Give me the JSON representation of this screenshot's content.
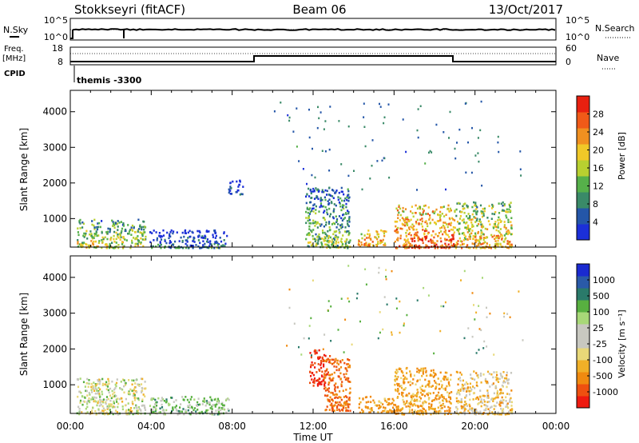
{
  "header": {
    "station": "Stokkseyri (fitACF)",
    "beam": "Beam 06",
    "date": "13/Oct/2017"
  },
  "labels": {
    "nsky": "N.Sky",
    "nsearch": "N.Search",
    "freq_top": "Freq.",
    "freq_unit": "[MHz]",
    "cpid": "CPID",
    "nave": "Nave",
    "cpid_value": "themis -3300",
    "time_axis": "Time UT"
  },
  "noise_panel": {
    "left_ticks": [
      "10^5",
      "10^0"
    ],
    "right_ticks": [
      "10^5",
      "10^0"
    ]
  },
  "freq_panel": {
    "left_ticks": [
      "18",
      "8"
    ],
    "right_ticks": [
      "60",
      "0"
    ]
  },
  "colors": {
    "power": [
      "#1b2fd8",
      "#2456a8",
      "#3a8a68",
      "#56b04a",
      "#b8d030",
      "#f0c828",
      "#f09020",
      "#f05a18",
      "#e82010"
    ],
    "velocity": [
      "#ee1a10",
      "#ee5010",
      "#f08a10",
      "#f0b028",
      "#e8d878",
      "#c8c8c0",
      "#c8c8c0",
      "#a8d878",
      "#58b040",
      "#2a7a6a",
      "#2a5aa8",
      "#1a2ad0"
    ]
  },
  "chart_data": [
    {
      "type": "heatmap",
      "panel": "power",
      "xlabel": "",
      "ylabel": "Slant Range [km]",
      "xlim": [
        0,
        24
      ],
      "ylim": [
        200,
        4600
      ],
      "x_ticks": [
        "00:00",
        "04:00",
        "08:00",
        "12:00",
        "16:00",
        "20:00",
        "00:00"
      ],
      "y_ticks": [
        1000,
        2000,
        3000,
        4000
      ],
      "colorbar": {
        "label": "Power [dB]",
        "tick_labels": [
          "4",
          "8",
          "12",
          "16",
          "20",
          "24",
          "28"
        ],
        "range": [
          0,
          32
        ]
      },
      "regions": [
        {
          "t": [
            0.3,
            3.7
          ],
          "r": [
            200,
            1000
          ],
          "level": 18
        },
        {
          "t": [
            3.9,
            7.8
          ],
          "r": [
            200,
            700
          ],
          "level": 8
        },
        {
          "t": [
            7.8,
            8.5
          ],
          "r": [
            1700,
            2100
          ],
          "level": 6
        },
        {
          "t": [
            11.6,
            13.8
          ],
          "r": [
            200,
            1900
          ],
          "level": 14
        },
        {
          "t": [
            14.2,
            15.6
          ],
          "r": [
            250,
            700
          ],
          "level": 26
        },
        {
          "t": [
            16.0,
            19.0
          ],
          "r": [
            200,
            1400
          ],
          "level": 28
        },
        {
          "t": [
            19.0,
            21.8
          ],
          "r": [
            200,
            1500
          ],
          "level": 22
        }
      ]
    },
    {
      "type": "heatmap",
      "panel": "velocity",
      "xlabel": "Time UT",
      "ylabel": "Slant Range [km]",
      "xlim": [
        0,
        24
      ],
      "ylim": [
        200,
        4600
      ],
      "x_ticks": [
        "00:00",
        "04:00",
        "08:00",
        "12:00",
        "16:00",
        "20:00",
        "00:00"
      ],
      "y_ticks": [
        1000,
        2000,
        3000,
        4000
      ],
      "colorbar": {
        "label": "Velocity [m s⁻¹]",
        "tick_labels": [
          "-1000",
          "-500",
          "-100",
          "-25",
          "25",
          "100",
          "500",
          "1000"
        ],
        "range": [
          -1200,
          1200
        ]
      },
      "regions": [
        {
          "t": [
            0.3,
            3.7
          ],
          "r": [
            200,
            1200
          ],
          "level": 0
        },
        {
          "t": [
            3.9,
            7.8
          ],
          "r": [
            200,
            700
          ],
          "level": 50
        },
        {
          "t": [
            11.8,
            12.8
          ],
          "r": [
            1000,
            2000
          ],
          "level": -1000
        },
        {
          "t": [
            12.5,
            13.8
          ],
          "r": [
            300,
            1800
          ],
          "level": -500
        },
        {
          "t": [
            14.2,
            16.0
          ],
          "r": [
            250,
            700
          ],
          "level": -100
        },
        {
          "t": [
            16.0,
            18.8
          ],
          "r": [
            200,
            1500
          ],
          "level": -100
        },
        {
          "t": [
            19.0,
            21.8
          ],
          "r": [
            200,
            1400
          ],
          "level": -50
        }
      ]
    }
  ]
}
